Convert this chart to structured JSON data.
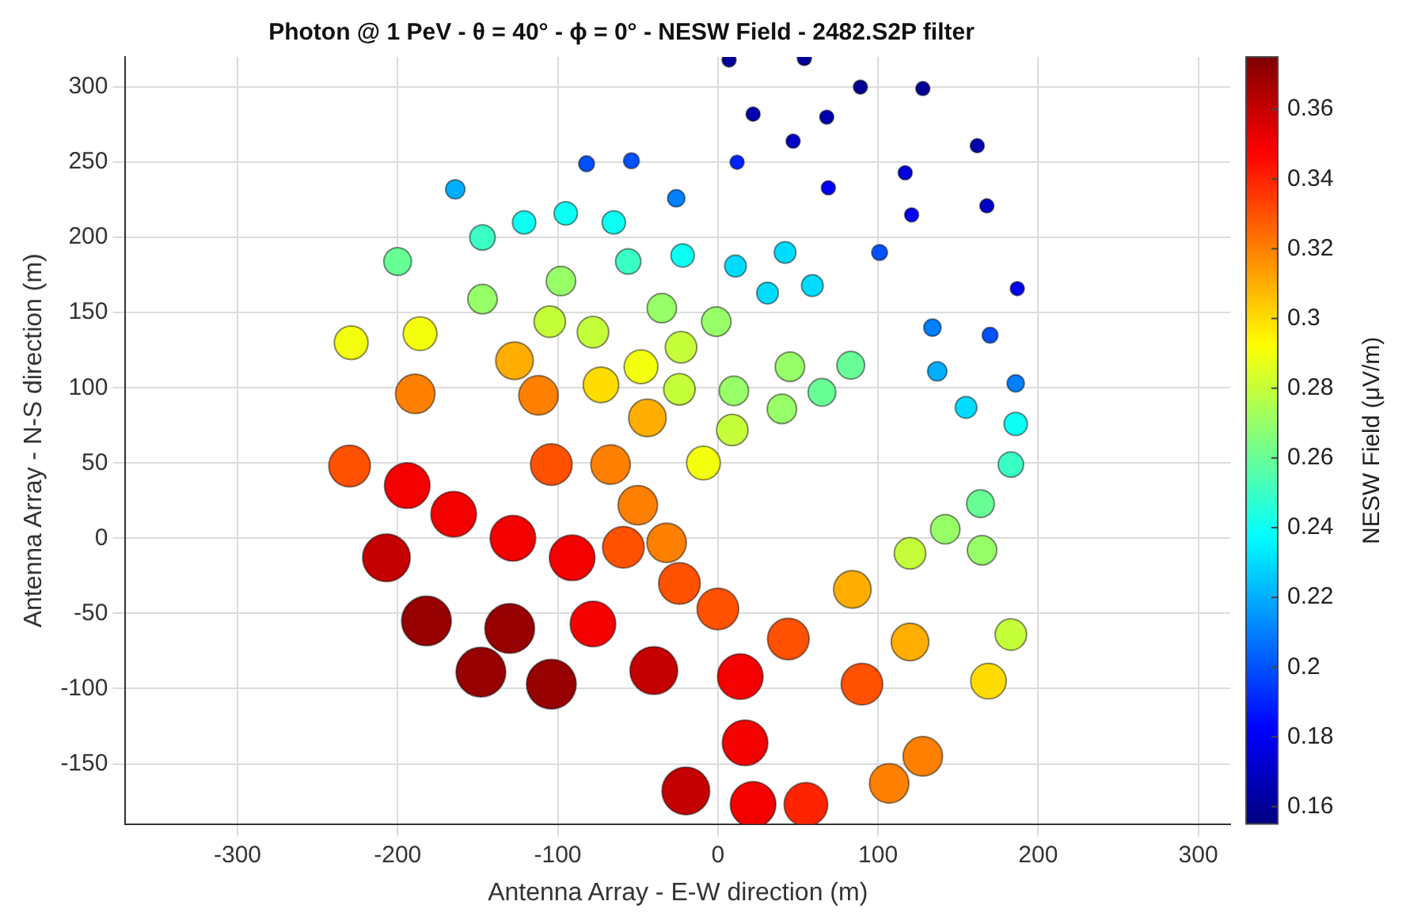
{
  "chart_data": {
    "type": "scatter",
    "title": "Photon @ 1 PeV - θ = 40° - ϕ = 0° - NESW Field - 2482.S2P filter",
    "xlabel": "Antenna Array - E-W direction (m)",
    "ylabel": "Antenna Array - N-S direction (m)",
    "clabel": "NESW Field (μV/m)",
    "marker": "circle",
    "grid": true,
    "xlim": [
      -370,
      320
    ],
    "ylim": [
      -190,
      320
    ],
    "xticks": [
      -300,
      -200,
      -100,
      0,
      100,
      200,
      300
    ],
    "yticks": [
      -150,
      -100,
      -50,
      0,
      50,
      100,
      150,
      200,
      250,
      300
    ],
    "clim": [
      0.155,
      0.375
    ],
    "cticks": [
      0.16,
      0.18,
      0.2,
      0.22,
      0.24,
      0.26,
      0.28,
      0.3,
      0.32,
      0.34,
      0.36
    ],
    "x": [
      7,
      54,
      22,
      68,
      89,
      128,
      47,
      69,
      162,
      168,
      121,
      117,
      101,
      12,
      -26,
      -54,
      -82,
      -164,
      134,
      170,
      187,
      137,
      186,
      155,
      186,
      183,
      164,
      142,
      165,
      120,
      183,
      169,
      84,
      120,
      44,
      90,
      128,
      107,
      55,
      22,
      -20,
      17,
      14,
      0,
      -24,
      -32,
      -59,
      -91,
      -50,
      -67,
      -104,
      -230,
      -194,
      -165,
      -128,
      -207,
      -182,
      -130,
      -148,
      -104,
      -78,
      -40,
      -147,
      -121,
      -95,
      -65,
      -200,
      -56,
      -22,
      11,
      31,
      -98,
      -147,
      -35,
      -1,
      -105,
      -78,
      -186,
      -229,
      -23,
      -127,
      -48,
      -73,
      -24,
      10,
      -189,
      -112,
      -44,
      9,
      -9,
      42,
      59,
      83,
      45,
      65,
      40
    ],
    "values": [
      318,
      319,
      282,
      280,
      300,
      299,
      264,
      233,
      261,
      221,
      215,
      243,
      190,
      250,
      226,
      251,
      249,
      232,
      140,
      135,
      166,
      111,
      103,
      87,
      76,
      49,
      23,
      6,
      -8,
      -10,
      -64,
      -95,
      -34,
      -69,
      -67,
      -97,
      -145,
      -163,
      -177,
      -177,
      -168,
      -136,
      -92,
      -47,
      -30,
      -3,
      -6,
      -13,
      22,
      49,
      49,
      48,
      35,
      16,
      0,
      -13,
      -55,
      -60,
      -89,
      -97,
      -57,
      -88,
      200,
      210,
      216,
      210,
      184,
      184,
      188,
      181,
      163,
      171,
      159,
      153,
      144,
      144,
      137,
      136,
      130,
      127,
      118,
      114,
      102,
      99,
      98,
      96,
      95,
      80,
      72,
      50,
      190,
      168,
      115,
      114,
      97,
      86
    ],
    "sizes": [
      0.08,
      0.08,
      0.08,
      0.08,
      0.08,
      0.08,
      0.08,
      0.08,
      0.08,
      0.08,
      0.08,
      0.08,
      0.1,
      0.08,
      0.12,
      0.1,
      0.1,
      0.15,
      0.12,
      0.1,
      0.08,
      0.15,
      0.12,
      0.19,
      0.22,
      0.26,
      0.31,
      0.35,
      0.35,
      0.4,
      0.4,
      0.51,
      0.57,
      0.57,
      0.7,
      0.7,
      0.63,
      0.63,
      0.77,
      0.84,
      0.92,
      0.84,
      0.84,
      0.7,
      0.7,
      0.63,
      0.7,
      0.84,
      0.63,
      0.63,
      0.7,
      0.7,
      0.84,
      0.84,
      0.84,
      0.92,
      1,
      1,
      1,
      1,
      0.84,
      0.92,
      0.26,
      0.22,
      0.22,
      0.22,
      0.31,
      0.26,
      0.22,
      0.19,
      0.19,
      0.35,
      0.35,
      0.35,
      0.35,
      0.4,
      0.4,
      0.46,
      0.46,
      0.4,
      0.57,
      0.46,
      0.51,
      0.4,
      0.35,
      0.63,
      0.63,
      0.57,
      0.4,
      0.46,
      0.19,
      0.19,
      0.31,
      0.35,
      0.31,
      0.35
    ],
    "cvalues": [
      0.16,
      0.16,
      0.165,
      0.165,
      0.16,
      0.16,
      0.17,
      0.18,
      0.165,
      0.17,
      0.18,
      0.175,
      0.2,
      0.19,
      0.21,
      0.2,
      0.2,
      0.22,
      0.21,
      0.2,
      0.18,
      0.22,
      0.21,
      0.23,
      0.24,
      0.25,
      0.26,
      0.27,
      0.27,
      0.28,
      0.28,
      0.3,
      0.31,
      0.31,
      0.33,
      0.33,
      0.32,
      0.32,
      0.34,
      0.35,
      0.36,
      0.35,
      0.35,
      0.33,
      0.33,
      0.32,
      0.33,
      0.35,
      0.32,
      0.32,
      0.33,
      0.33,
      0.35,
      0.35,
      0.35,
      0.36,
      0.37,
      0.37,
      0.37,
      0.37,
      0.35,
      0.36,
      0.25,
      0.24,
      0.24,
      0.24,
      0.26,
      0.25,
      0.24,
      0.23,
      0.23,
      0.27,
      0.27,
      0.27,
      0.27,
      0.28,
      0.28,
      0.29,
      0.29,
      0.28,
      0.31,
      0.29,
      0.3,
      0.28,
      0.27,
      0.32,
      0.32,
      0.31,
      0.28,
      0.29,
      0.23,
      0.23,
      0.26,
      0.27,
      0.26,
      0.27
    ]
  }
}
